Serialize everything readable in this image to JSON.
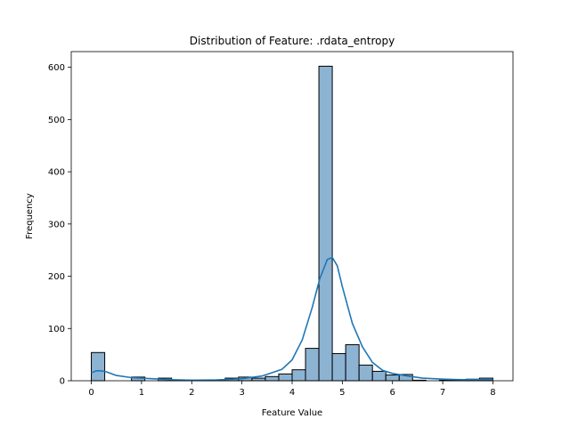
{
  "chart_data": {
    "type": "bar",
    "title": "Distribution of Feature: .rdata_entropy",
    "xlabel": "Feature Value",
    "ylabel": "Frequency",
    "xlim": [
      -0.4,
      8.4
    ],
    "ylim": [
      0,
      630
    ],
    "xticks": [
      0,
      1,
      2,
      3,
      4,
      5,
      6,
      7,
      8
    ],
    "yticks": [
      0,
      100,
      200,
      300,
      400,
      500,
      600
    ],
    "bin_width": 0.2667,
    "bins": [
      {
        "x": 0.0,
        "count": 54
      },
      {
        "x": 0.2667,
        "count": 0
      },
      {
        "x": 0.5333,
        "count": 0
      },
      {
        "x": 0.8,
        "count": 7
      },
      {
        "x": 1.0667,
        "count": 0
      },
      {
        "x": 1.3333,
        "count": 5
      },
      {
        "x": 1.6,
        "count": 1
      },
      {
        "x": 1.8667,
        "count": 1
      },
      {
        "x": 2.1333,
        "count": 1
      },
      {
        "x": 2.4,
        "count": 1
      },
      {
        "x": 2.6667,
        "count": 5
      },
      {
        "x": 2.9333,
        "count": 7
      },
      {
        "x": 3.2,
        "count": 5
      },
      {
        "x": 3.4667,
        "count": 8
      },
      {
        "x": 3.7333,
        "count": 13
      },
      {
        "x": 4.0,
        "count": 21
      },
      {
        "x": 4.2667,
        "count": 62
      },
      {
        "x": 4.5333,
        "count": 602
      },
      {
        "x": 4.8,
        "count": 52
      },
      {
        "x": 5.0667,
        "count": 69
      },
      {
        "x": 5.3333,
        "count": 30
      },
      {
        "x": 5.6,
        "count": 18
      },
      {
        "x": 5.8667,
        "count": 11
      },
      {
        "x": 6.1333,
        "count": 12
      },
      {
        "x": 6.4,
        "count": 1
      },
      {
        "x": 6.6667,
        "count": 0
      },
      {
        "x": 6.9333,
        "count": 1
      },
      {
        "x": 7.2,
        "count": 1
      },
      {
        "x": 7.4667,
        "count": 3
      },
      {
        "x": 7.7333,
        "count": 5
      }
    ],
    "kde": {
      "x": [
        0.0,
        0.1,
        0.2,
        0.3,
        0.5,
        0.8,
        1.2,
        1.6,
        2.0,
        2.5,
        3.0,
        3.4,
        3.8,
        4.0,
        4.2,
        4.4,
        4.55,
        4.7,
        4.8,
        4.9,
        5.0,
        5.2,
        5.4,
        5.6,
        5.8,
        6.0,
        6.3,
        6.6,
        7.0,
        7.4,
        7.8,
        8.0
      ],
      "y": [
        15,
        19,
        19,
        17,
        10,
        6,
        4,
        2,
        1,
        1.5,
        4,
        9,
        22,
        40,
        78,
        140,
        195,
        232,
        236,
        220,
        180,
        110,
        65,
        35,
        20,
        14,
        9,
        5,
        3,
        2,
        2,
        2
      ]
    },
    "bar_color": "#8db3d3",
    "bar_edge_color": "#000000",
    "kde_color": "#1f77b4",
    "grid": false,
    "legend": "none"
  }
}
